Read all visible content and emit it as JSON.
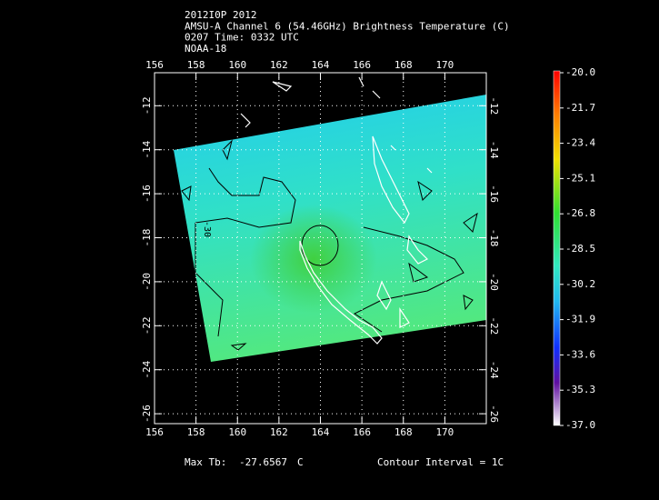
{
  "header": {
    "lines": [
      "2012I0P 2012",
      "AMSU-A Channel 6 (54.46GHz) Brightness Temperature (C)",
      "0207 Time: 0332 UTC",
      "NOAA-18"
    ]
  },
  "map": {
    "xlim": [
      156,
      172
    ],
    "ylim": [
      -26.45,
      -10.5
    ],
    "xticks": [
      156,
      158,
      160,
      162,
      164,
      166,
      168,
      170
    ],
    "yticks": [
      -12,
      -14,
      -16,
      -18,
      -20,
      -22,
      -24,
      -26
    ],
    "contour_label": "-30"
  },
  "colorbar": {
    "ticks": [
      {
        "value": -20,
        "label": "-20.0"
      },
      {
        "value": -21.7,
        "label": "-21.7"
      },
      {
        "value": -23.4,
        "label": "-23.4"
      },
      {
        "value": -25.1,
        "label": "-25.1"
      },
      {
        "value": -26.8,
        "label": "-26.8"
      },
      {
        "value": -28.5,
        "label": "-28.5"
      },
      {
        "value": -30.2,
        "label": "-30.2"
      },
      {
        "value": -31.9,
        "label": "-31.9"
      },
      {
        "value": -33.6,
        "label": "-33.6"
      },
      {
        "value": -35.3,
        "label": "-35.3"
      },
      {
        "value": -37,
        "label": "-37.0"
      }
    ]
  },
  "footer": {
    "max_label": "Max Tb:",
    "max_value": "-27.6567",
    "unit": "C",
    "contour_interval": "Contour Interval = 1C"
  }
}
